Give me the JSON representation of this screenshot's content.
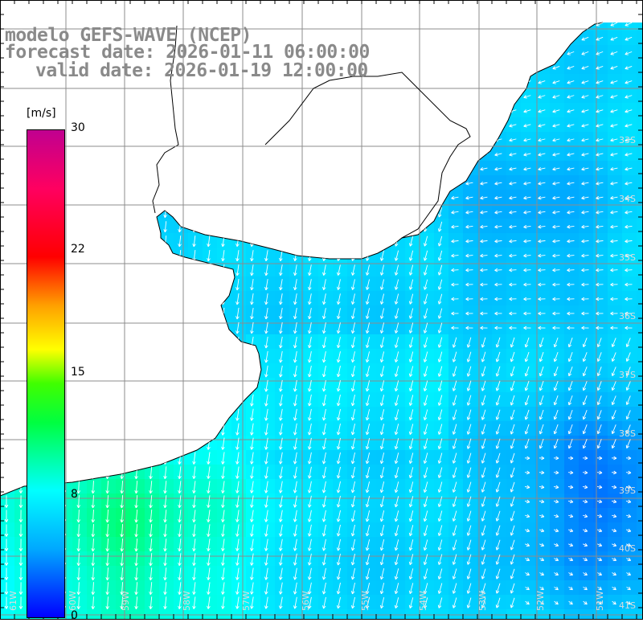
{
  "header": {
    "line1": "modelo GEFS-WAVE (NCEP)",
    "line2": "forecast date: 2026-01-11 06:00:00",
    "line3": "valid date: 2026-01-19 12:00:00"
  },
  "colorbar": {
    "unit": "[m/s]",
    "ticks": [
      "30",
      "22",
      "15",
      "8",
      "0"
    ],
    "colors": [
      "#0000ff",
      "#00a8ff",
      "#00ffff",
      "#00ff40",
      "#ffff00",
      "#ff0000",
      "#c00090"
    ]
  },
  "map": {
    "lat_labels": [
      "33S",
      "34S",
      "35S",
      "36S",
      "37S",
      "38S",
      "39S",
      "40S",
      "41S"
    ],
    "lon_labels": [
      "61W",
      "60W",
      "59W",
      "58W",
      "57W",
      "56W",
      "55W",
      "54W",
      "53W",
      "52W",
      "51W"
    ],
    "land_color": "#ffffff",
    "grid_color": "#8c8c8c",
    "arrow_color": "#ffffff"
  }
}
